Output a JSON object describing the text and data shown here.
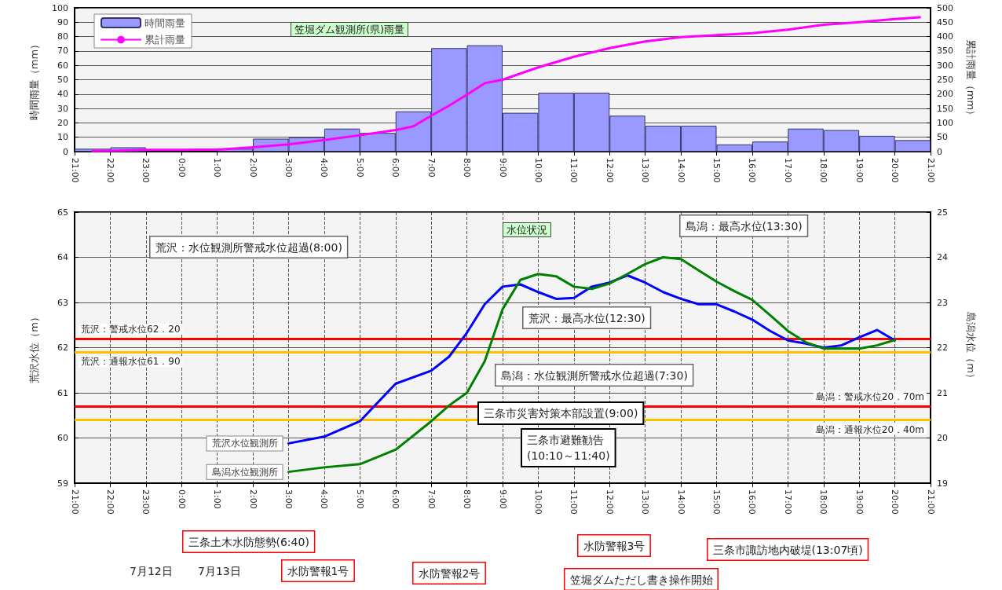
{
  "chart_data": [
    {
      "type": "bar",
      "title": "笠堀ダム観測所(県)雨量",
      "ylabel": "時間雨量（mm）",
      "y2label": "累計雨量（mm）",
      "xlim": [
        "--07-12T21:00",
        "--07-13T21:00"
      ],
      "xticks": [
        {
          "value": "--07-12T21:00",
          "label": "21:00"
        },
        {
          "value": "--07-12T22:00",
          "label": "22:00"
        },
        {
          "value": "--07-12T23:00",
          "label": "23:00"
        },
        {
          "value": "--07-13T00:00",
          "label": "0:00"
        },
        {
          "value": "--07-13T01:00",
          "label": "1:00"
        },
        {
          "value": "--07-13T02:00",
          "label": "2:00"
        },
        {
          "value": "--07-13T03:00",
          "label": "3:00"
        },
        {
          "value": "--07-13T04:00",
          "label": "4:00"
        },
        {
          "value": "--07-13T05:00",
          "label": "5:00"
        },
        {
          "value": "--07-13T06:00",
          "label": "6:00"
        },
        {
          "value": "--07-13T07:00",
          "label": "7:00"
        },
        {
          "value": "--07-13T08:00",
          "label": "8:00"
        },
        {
          "value": "--07-13T09:00",
          "label": "9:00"
        },
        {
          "value": "--07-13T10:00",
          "label": "10:00"
        },
        {
          "value": "--07-13T11:00",
          "label": "11:00"
        },
        {
          "value": "--07-13T12:00",
          "label": "12:00"
        },
        {
          "value": "--07-13T13:00",
          "label": "13:00"
        },
        {
          "value": "--07-13T14:00",
          "label": "14:00"
        },
        {
          "value": "--07-13T15:00",
          "label": "15:00"
        },
        {
          "value": "--07-13T16:00",
          "label": "16:00"
        },
        {
          "value": "--07-13T17:00",
          "label": "17:00"
        },
        {
          "value": "--07-13T18:00",
          "label": "18:00"
        },
        {
          "value": "--07-13T19:00",
          "label": "19:00"
        },
        {
          "value": "--07-13T20:00",
          "label": "20:00"
        },
        {
          "value": "--07-13T21:00",
          "label": "21:00"
        }
      ],
      "ylim": [
        0,
        100
      ],
      "yticks": [
        0,
        10,
        20,
        30,
        40,
        50,
        60,
        70,
        80,
        90,
        100
      ],
      "y2lim": [
        0,
        500
      ],
      "y2ticks": [
        0,
        50,
        100,
        150,
        200,
        250,
        300,
        350,
        400,
        450,
        500
      ],
      "grid": "y",
      "legend": "top left",
      "marker": "none",
      "series": [
        {
          "name": "時間雨量",
          "color": "#9999ff",
          "x": [
            "--07-12T21:30",
            "--07-12T22:30",
            "--07-12T23:30",
            "--07-13T00:30",
            "--07-13T01:30",
            "--07-13T02:30",
            "--07-13T03:30",
            "--07-13T04:30",
            "--07-13T05:30",
            "--07-13T06:30",
            "--07-13T07:30",
            "--07-13T08:30",
            "--07-13T09:30",
            "--07-13T10:30",
            "--07-13T11:30",
            "--07-13T12:30",
            "--07-13T13:30",
            "--07-13T14:30",
            "--07-13T15:30",
            "--07-13T16:30",
            "--07-13T17:30",
            "--07-13T18:30",
            "--07-13T19:30",
            "--07-13T20:30"
          ],
          "values": [
            2,
            3,
            0,
            0,
            2,
            9,
            10,
            16,
            13,
            28,
            72,
            74,
            27,
            41,
            41,
            25,
            18,
            18,
            5,
            7,
            16,
            15,
            11,
            8
          ]
        },
        {
          "name": "累計雨量",
          "type": "line",
          "color": "#ff00ff",
          "axis": "y2",
          "x": [
            "--07-12T21:30",
            "--07-12T22:00",
            "--07-12T23:00",
            "--07-13T00:00",
            "--07-13T01:00",
            "--07-13T02:00",
            "--07-13T03:00",
            "--07-13T04:00",
            "--07-13T05:00",
            "--07-13T06:00",
            "--07-13T06:30",
            "--07-13T07:00",
            "--07-13T07:30",
            "--07-13T08:00",
            "--07-13T08:30",
            "--07-13T09:00",
            "--07-13T10:00",
            "--07-13T11:00",
            "--07-13T12:00",
            "--07-13T13:00",
            "--07-13T14:00",
            "--07-13T15:00",
            "--07-13T16:00",
            "--07-13T17:00",
            "--07-13T18:00",
            "--07-13T19:00",
            "--07-13T20:00",
            "--07-13T20:42"
          ],
          "values": [
            2,
            3,
            6,
            6,
            7,
            15,
            25,
            40,
            57,
            75,
            88,
            125,
            160,
            198,
            238,
            250,
            293,
            330,
            360,
            383,
            398,
            405,
            412,
            424,
            441,
            450,
            461,
            467
          ]
        }
      ]
    },
    {
      "type": "line",
      "title": "水位状況",
      "ylabel": "荒沢水位（m）",
      "y2label": "島潟水位（m）",
      "xlim": [
        "--07-12T21:00",
        "--07-13T21:00"
      ],
      "xticks": [
        {
          "value": "--07-12T21:00",
          "label": "21:00"
        },
        {
          "value": "--07-12T22:00",
          "label": "22:00"
        },
        {
          "value": "--07-12T23:00",
          "label": "23:00"
        },
        {
          "value": "--07-13T00:00",
          "label": "0:00"
        },
        {
          "value": "--07-13T01:00",
          "label": "1:00"
        },
        {
          "value": "--07-13T02:00",
          "label": "2:00"
        },
        {
          "value": "--07-13T03:00",
          "label": "3:00"
        },
        {
          "value": "--07-13T04:00",
          "label": "4:00"
        },
        {
          "value": "--07-13T05:00",
          "label": "5:00"
        },
        {
          "value": "--07-13T06:00",
          "label": "6:00"
        },
        {
          "value": "--07-13T07:00",
          "label": "7:00"
        },
        {
          "value": "--07-13T08:00",
          "label": "8:00"
        },
        {
          "value": "--07-13T09:00",
          "label": "9:00"
        },
        {
          "value": "--07-13T10:00",
          "label": "10:00"
        },
        {
          "value": "--07-13T11:00",
          "label": "11:00"
        },
        {
          "value": "--07-13T12:00",
          "label": "12:00"
        },
        {
          "value": "--07-13T13:00",
          "label": "13:00"
        },
        {
          "value": "--07-13T14:00",
          "label": "14:00"
        },
        {
          "value": "--07-13T15:00",
          "label": "15:00"
        },
        {
          "value": "--07-13T16:00",
          "label": "16:00"
        },
        {
          "value": "--07-13T17:00",
          "label": "17:00"
        },
        {
          "value": "--07-13T18:00",
          "label": "18:00"
        },
        {
          "value": "--07-13T19:00",
          "label": "19:00"
        },
        {
          "value": "--07-13T20:00",
          "label": "20:00"
        },
        {
          "value": "--07-13T21:00",
          "label": "21:00"
        }
      ],
      "ylim": [
        59,
        65
      ],
      "yticks": [
        59,
        60,
        61,
        62,
        63,
        64,
        65
      ],
      "y2lim": [
        19,
        25
      ],
      "y2ticks": [
        19,
        20,
        21,
        22,
        23,
        24,
        25
      ],
      "grid": true,
      "marker": "none",
      "series": [
        {
          "name": "荒沢水位観測所",
          "color": "#0000ff",
          "x": [
            "--07-13T03:00",
            "--07-13T04:00",
            "--07-13T05:00",
            "--07-13T06:00",
            "--07-13T07:00",
            "--07-13T07:30",
            "--07-13T08:00",
            "--07-13T08:30",
            "--07-13T09:00",
            "--07-13T09:30",
            "--07-13T10:00",
            "--07-13T10:30",
            "--07-13T11:00",
            "--07-13T11:30",
            "--07-13T12:00",
            "--07-13T12:30",
            "--07-13T13:00",
            "--07-13T13:30",
            "--07-13T14:00",
            "--07-13T14:30",
            "--07-13T15:00",
            "--07-13T15:30",
            "--07-13T16:00",
            "--07-13T16:30",
            "--07-13T17:00",
            "--07-13T17:30",
            "--07-13T18:00",
            "--07-13T18:30",
            "--07-13T19:00",
            "--07-13T19:30",
            "--07-13T20:00"
          ],
          "values": [
            59.88,
            60.03,
            60.37,
            61.2,
            61.49,
            61.8,
            62.33,
            62.96,
            63.35,
            63.4,
            63.23,
            63.08,
            63.1,
            63.35,
            63.44,
            63.6,
            63.44,
            63.23,
            63.08,
            62.96,
            62.96,
            62.8,
            62.62,
            62.37,
            62.16,
            62.09,
            62.0,
            62.05,
            62.23,
            62.39,
            62.16
          ]
        },
        {
          "name": "島潟水位観測所",
          "color": "#008000",
          "axis": "y2",
          "x": [
            "--07-13T03:00",
            "--07-13T04:00",
            "--07-13T05:00",
            "--07-13T06:00",
            "--07-13T07:00",
            "--07-13T07:30",
            "--07-13T08:00",
            "--07-13T08:30",
            "--07-13T09:00",
            "--07-13T09:30",
            "--07-13T10:00",
            "--07-13T10:30",
            "--07-13T11:00",
            "--07-13T11:30",
            "--07-13T12:00",
            "--07-13T12:30",
            "--07-13T13:00",
            "--07-13T13:30",
            "--07-13T14:00",
            "--07-13T14:30",
            "--07-13T15:00",
            "--07-13T15:30",
            "--07-13T16:00",
            "--07-13T16:30",
            "--07-13T17:00",
            "--07-13T17:30",
            "--07-13T18:00",
            "--07-13T18:30",
            "--07-13T19:00",
            "--07-13T19:30",
            "--07-13T20:00"
          ],
          "values": [
            19.25,
            19.35,
            19.42,
            19.74,
            20.37,
            20.72,
            21.0,
            21.7,
            22.85,
            23.5,
            23.63,
            23.58,
            23.35,
            23.3,
            23.42,
            23.63,
            23.85,
            24.0,
            23.96,
            23.71,
            23.46,
            23.25,
            23.06,
            22.72,
            22.37,
            22.12,
            21.98,
            21.98,
            21.98,
            22.05,
            22.17
          ]
        }
      ],
      "ref_lines": [
        {
          "axis": "y",
          "value": 62.2,
          "label": "荒沢：警戒水位62．20",
          "color": "#ff0000"
        },
        {
          "axis": "y",
          "value": 61.9,
          "label": "荒沢：通報水位61．90",
          "color": "#ffc000"
        },
        {
          "axis": "y2",
          "value": 20.7,
          "label": "島潟：警戒水位20．70m",
          "color": "#ff0000"
        },
        {
          "axis": "y2",
          "value": 20.4,
          "label": "島潟：通報水位20．40m",
          "color": "#ffc000"
        }
      ],
      "annotations": [
        "荒沢：水位観測所警戒水位超過(8:00)",
        "島潟：最高水位(13:30)",
        "荒沢：最高水位(12:30)",
        "島潟：水位観測所警戒水位超過(7:30)",
        "三条市災害対策本部設置(9:00)",
        "三条市避難勧告\n(10:10～11:40)",
        "三条土木水防態勢(6:40)",
        "水防警報1号",
        "水防警報2号",
        "笠堀ダムただし書き操作開始",
        "水防警報3号",
        "三条市諏訪地内破堤(13:07頃)",
        "7月12日",
        "7月13日"
      ]
    }
  ]
}
